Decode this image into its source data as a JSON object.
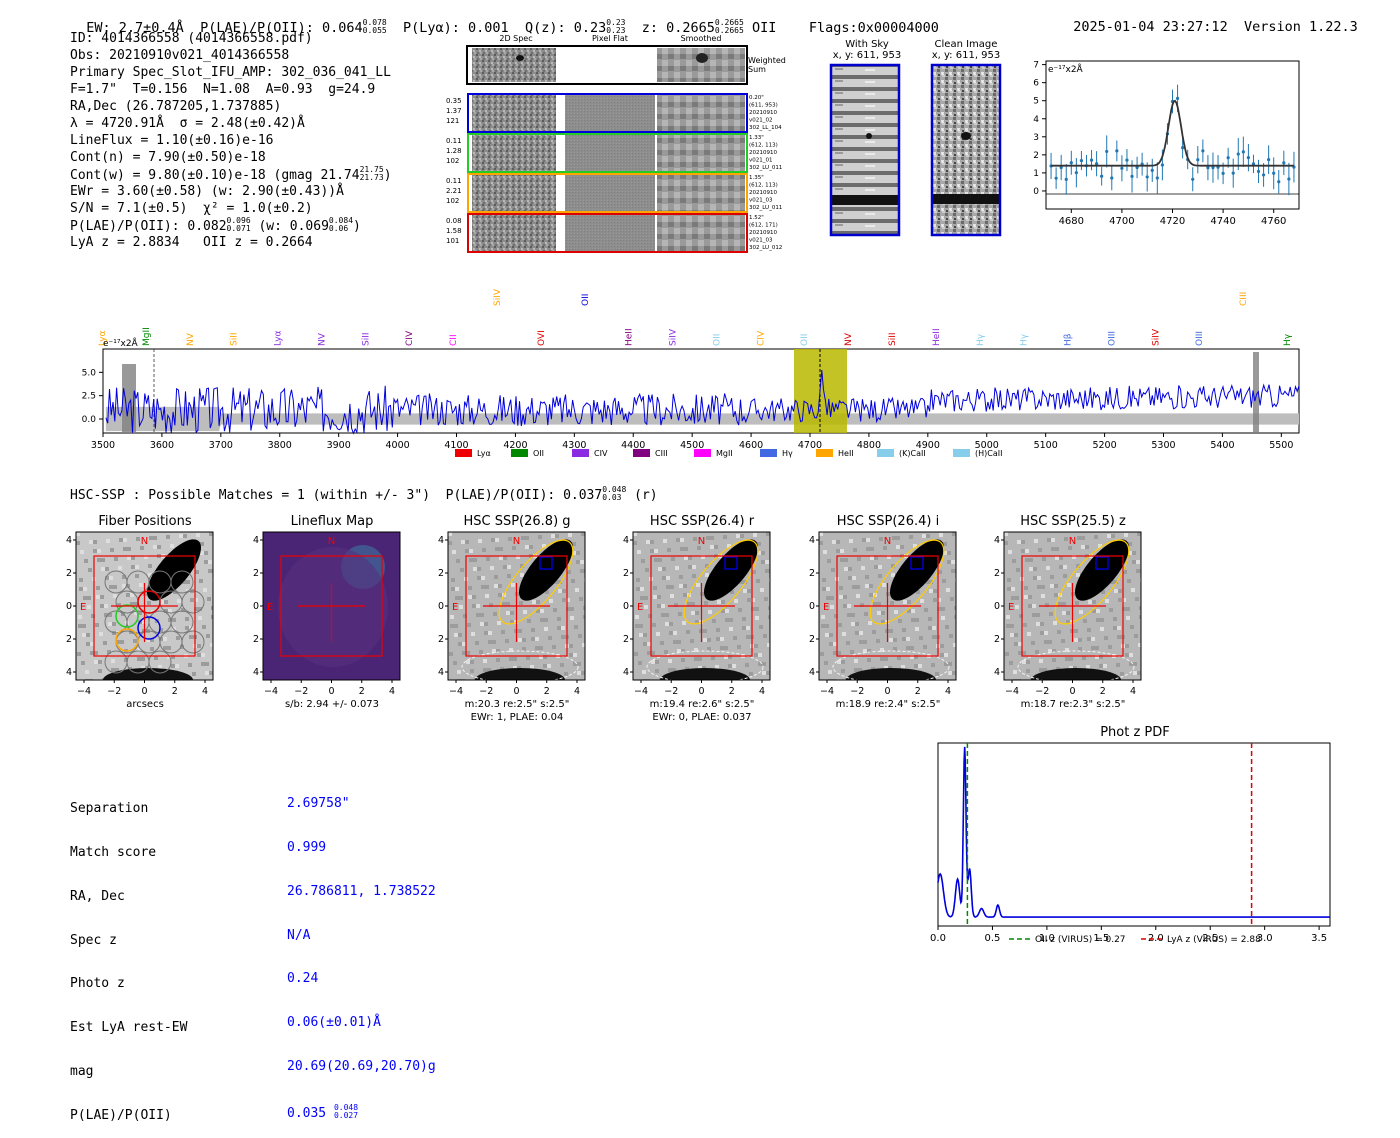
{
  "header": {
    "ew": "EW: 2.7±0.4Å",
    "plae_label": "P(LAE)/P(OII): 0.064",
    "plae_sup": "0.078",
    "plae_sub": "0.055",
    "plya": "P(Lyα): 0.001",
    "qz_label": "Q(z): 0.23",
    "qz_sup": "0.23",
    "qz_sub": "0.23",
    "z_label": "z: 0.2665",
    "z_sup": "0.2665",
    "z_sub": "0.2665",
    "z_tail": "OII",
    "flags": "Flags:0x00004000",
    "datetime": "2025-01-04 23:27:12",
    "version": "Version 1.22.3"
  },
  "info": {
    "id": "ID: 4014366558 (4014366558.pdf)",
    "obs": "Obs: 20210910v021_4014366558",
    "slot": "Primary Spec_Slot_IFU_AMP: 302_036_041_LL",
    "params": "F=1.7\"  T=0.156  N=1.08  A=0.93  g=24.9",
    "radec": "RA,Dec (26.787205,1.737885)",
    "lambda": "λ = 4720.91Å  σ = 2.48(±0.42)Å",
    "lineflux": "LineFlux = 1.10(±0.16)e-16",
    "contn": "Cont(n) = 7.90(±0.50)e-18",
    "contw_label": "Cont(w) = 9.80(±0.10)e-18 (gmag 21.74",
    "contw_sup": "21.75",
    "contw_sub": "21.73",
    "contw_tail": ")",
    "ewr": "EWr = 3.60(±0.58) (w: 2.90(±0.43))Å",
    "sn": "S/N = 7.1(±0.5)  χ² = 1.0(±0.2)",
    "plae_label": "P(LAE)/P(OII): 0.082",
    "plae_sup": "0.096",
    "plae_sub": "0.071",
    "plae_mid": " (w: 0.069",
    "plae_w_sup": "0.084",
    "plae_w_sub": "0.06",
    "plae_tail": ")",
    "lyaz": "LyA z = 2.8834   OII z = 0.2664"
  },
  "cutouts": {
    "col_2d": "2D Spec",
    "col_flat": "Pixel Flat",
    "col_smooth": "Smoothed",
    "weighted": "Weighted",
    "sum": "Sum",
    "rows": [
      {
        "left": [
          "0.35",
          "1.37",
          "121"
        ],
        "right": [
          "0.20\"",
          "(611, 953)",
          "20210910",
          "v021_02",
          "302_LL_104"
        ],
        "color": "#0000dd"
      },
      {
        "left": [
          "0.11",
          "1.28",
          "102"
        ],
        "right": [
          "1.33\"",
          "(612, 113)",
          "20210910",
          "v021_01",
          "302_LU_011"
        ],
        "color": "#22cc22"
      },
      {
        "left": [
          "0.11",
          "2.21",
          "102"
        ],
        "right": [
          "1.35\"",
          "(612, 113)",
          "20210910",
          "v021_03",
          "302_LU_011"
        ],
        "color": "#ffa500"
      },
      {
        "left": [
          "0.08",
          "1.58",
          "101"
        ],
        "right": [
          "1.52\"",
          "(612, 171)",
          "20210910",
          "v021_03",
          "302_LU_012"
        ],
        "color": "#dd0000"
      }
    ]
  },
  "sky": {
    "with_sky": "With Sky",
    "with_sky_xy": "x, y: 611, 953",
    "clean": "Clean Image",
    "clean_xy": "x, y: 611, 953"
  },
  "zoom_plot": {
    "yunit": "e⁻¹⁷x2Å",
    "xticks": [
      "4680",
      "4700",
      "4720",
      "4740",
      "4760"
    ],
    "yticks": [
      "0",
      "1",
      "2",
      "3",
      "4",
      "5",
      "6",
      "7"
    ]
  },
  "full_spec": {
    "yunit": "e⁻¹⁷x2Å",
    "yticks": [
      "0.0",
      "2.5",
      "5.0"
    ],
    "xticks": [
      "3500",
      "3600",
      "3700",
      "3800",
      "3900",
      "4000",
      "4100",
      "4200",
      "4300",
      "4400",
      "4500",
      "4600",
      "4700",
      "4800",
      "4900",
      "5000",
      "5100",
      "5200",
      "5300",
      "5400",
      "5500"
    ],
    "line_labels": [
      {
        "t": "Lyα",
        "c": "#ffa500"
      },
      {
        "t": "MgII",
        "c": "#008800"
      },
      {
        "t": "NV",
        "c": "#ffa500"
      },
      {
        "t": "SiII",
        "c": "#ffa500"
      },
      {
        "t": "Lyα",
        "c": "#8a2be2"
      },
      {
        "t": "NV",
        "c": "#8a2be2"
      },
      {
        "t": "SiII",
        "c": "#8a2be2"
      },
      {
        "t": "CIV",
        "c": "#800080"
      },
      {
        "t": "CII",
        "c": "#ff00ff"
      },
      {
        "t": "SiIV",
        "c": "#ffa500"
      },
      {
        "t": "OVI",
        "c": "#dd0000"
      },
      {
        "t": "OII",
        "c": "#0000dd"
      },
      {
        "t": "HeII",
        "c": "#800080"
      },
      {
        "t": "SiIV",
        "c": "#8a2be2"
      },
      {
        "t": "OII",
        "c": "#87ceeb"
      },
      {
        "t": "CIV",
        "c": "#ffa500"
      },
      {
        "t": "OII",
        "c": "#87ceeb"
      },
      {
        "t": "NV",
        "c": "#dd0000"
      },
      {
        "t": "SiII",
        "c": "#dd0000"
      },
      {
        "t": "HeII",
        "c": "#8a2be2"
      },
      {
        "t": "Hγ",
        "c": "#87ceeb"
      },
      {
        "t": "Hγ",
        "c": "#87ceeb"
      },
      {
        "t": "Hβ",
        "c": "#4169e1"
      },
      {
        "t": "OIII",
        "c": "#4169e1"
      },
      {
        "t": "SiIV",
        "c": "#dd0000"
      },
      {
        "t": "OIII",
        "c": "#4169e1"
      },
      {
        "t": "CIII",
        "c": "#ffa500"
      },
      {
        "t": "Hγ",
        "c": "#008800"
      }
    ],
    "legend": [
      {
        "t": "Lyα",
        "c": "#ee0000"
      },
      {
        "t": "OII",
        "c": "#008800"
      },
      {
        "t": "CIV",
        "c": "#8a2be2"
      },
      {
        "t": "CIII",
        "c": "#800080"
      },
      {
        "t": "MgII",
        "c": "#ff00ff"
      },
      {
        "t": "Hγ",
        "c": "#4169e1"
      },
      {
        "t": "HeII",
        "c": "#ffa500"
      },
      {
        "t": "(K)CaII",
        "c": "#87ceeb"
      },
      {
        "t": "(H)CaII",
        "c": "#87ceeb"
      }
    ]
  },
  "hsc_line": {
    "label": "HSC-SSP : Possible Matches = 1 (within +/- 3\")  P(LAE)/P(OII): 0.037",
    "sup": "0.048",
    "sub": "0.03",
    "tail": "(r)"
  },
  "panels": [
    {
      "title": "Fiber Positions",
      "caption": "arcsecs",
      "caption2": ""
    },
    {
      "title": "Lineflux Map",
      "caption": "s/b: 2.94 +/- 0.073",
      "caption2": ""
    },
    {
      "title": "HSC SSP(26.8) g",
      "caption": "m:20.3  re:2.5\"  s:2.5\"",
      "caption2": "EWr: 1, PLAE: 0.04"
    },
    {
      "title": "HSC SSP(26.4) r",
      "caption": "m:19.4  re:2.6\"  s:2.5\"",
      "caption2": "EWr: 0, PLAE: 0.037"
    },
    {
      "title": "HSC SSP(26.4) i",
      "caption": "m:18.9  re:2.4\"  s:2.5\"",
      "caption2": ""
    },
    {
      "title": "HSC SSP(25.5) z",
      "caption": "m:18.7  re:2.3\"  s:2.5\"",
      "caption2": ""
    }
  ],
  "panel_axes": {
    "yticks": [
      "4",
      "2",
      "0",
      "−2",
      "−4"
    ],
    "xticks": [
      "−4",
      "−2",
      "0",
      "2",
      "4"
    ],
    "north": "N",
    "east": "E"
  },
  "match": {
    "labels": [
      "Separation",
      "Match score",
      "RA, Dec",
      "Spec z",
      "Photo z",
      "Est LyA rest-EW",
      "mag",
      "P(LAE)/P(OII)"
    ],
    "values": [
      "2.69758\"",
      "0.999",
      "26.786811, 1.738522",
      "N/A",
      "0.24",
      "0.06(±0.01)Å",
      "20.69(20.69,20.70)g"
    ],
    "plae_value": "0.035",
    "plae_sup": "0.048",
    "plae_sub": "0.027"
  },
  "photz": {
    "title": "Phot z PDF",
    "xticks": [
      "0.0",
      "0.5",
      "1.0",
      "1.5",
      "2.0",
      "2.5",
      "3.0",
      "3.5"
    ],
    "legend_oii": "OII z (VIRUS) = 0.27",
    "legend_lya": "LyA z (VIRUS) = 2.88",
    "oii_z": 0.27,
    "lya_z": 2.88
  }
}
